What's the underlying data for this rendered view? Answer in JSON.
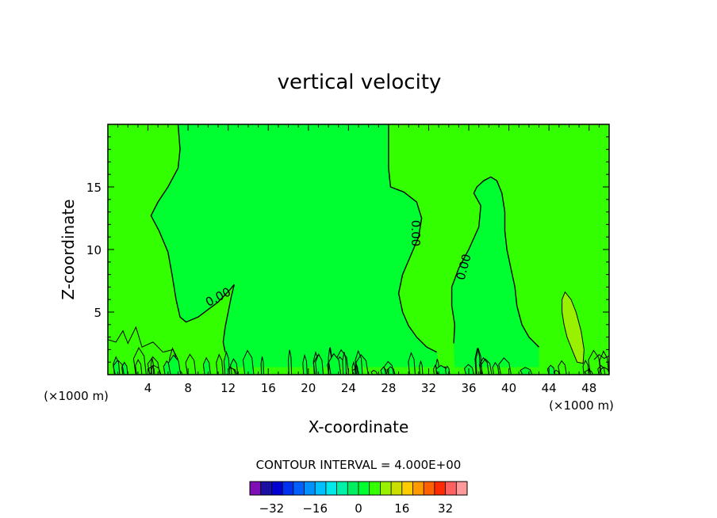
{
  "chart_data": {
    "type": "contour",
    "title": "vertical velocity",
    "xlabel": "X-coordinate",
    "ylabel": "Z-coordinate",
    "x_unit": "(×1000 m)",
    "xlim": [
      0,
      50
    ],
    "ylim": [
      0,
      20
    ],
    "x_ticks": [
      4,
      8,
      12,
      16,
      20,
      24,
      28,
      32,
      36,
      40,
      44,
      48
    ],
    "y_ticks": [
      5,
      10,
      15
    ],
    "contour_interval_text": "CONTOUR INTERVAL = 4.000E+00",
    "contour_labels": [
      "0.00",
      "0.00",
      "0.00"
    ],
    "colorbar": {
      "levels": [
        -36,
        -32,
        -28,
        -24,
        -20,
        -16,
        -12,
        -8,
        -4,
        0,
        4,
        8,
        12,
        16,
        20,
        24,
        28,
        32,
        36
      ],
      "tick_values": [
        -32,
        -16,
        0,
        16,
        32
      ],
      "tick_labels": [
        "−32",
        "−16",
        "0",
        "16",
        "32"
      ],
      "colors": [
        "#7f0fb5",
        "#1a0fa0",
        "#0000d0",
        "#0030f0",
        "#0060ff",
        "#0090ff",
        "#00c0ff",
        "#00e8e8",
        "#00f0a8",
        "#00ee60",
        "#00ff30",
        "#33ff00",
        "#99f000",
        "#ccdd00",
        "#ffcc00",
        "#ff9900",
        "#ff6000",
        "#ff2a00",
        "#ff6060",
        "#ff9a9a"
      ]
    },
    "fill_colors": {
      "positive": "#33ff00",
      "negative": "#00ff30",
      "strong_positive": "#99f000"
    },
    "zero_contours": [
      {
        "name": "left-zero-contour",
        "points": [
          [
            7.0,
            20
          ],
          [
            7.2,
            18
          ],
          [
            7.0,
            16.5
          ],
          [
            6.0,
            15.0
          ],
          [
            5.0,
            13.8
          ],
          [
            4.3,
            12.7
          ],
          [
            5.1,
            11.5
          ],
          [
            6.0,
            9.8
          ],
          [
            6.4,
            8.0
          ],
          [
            6.8,
            6.0
          ],
          [
            7.2,
            4.6
          ],
          [
            7.8,
            4.2
          ],
          [
            9.0,
            4.6
          ],
          [
            10.0,
            5.2
          ],
          [
            11.0,
            5.8
          ],
          [
            12.2,
            6.8
          ],
          [
            12.6,
            7.2
          ],
          [
            12.3,
            6.2
          ],
          [
            12.0,
            5.0
          ],
          [
            11.7,
            3.8
          ],
          [
            11.5,
            2.6
          ],
          [
            11.7,
            1.8
          ]
        ]
      },
      {
        "name": "middle-zero-contour",
        "points": [
          [
            28.0,
            20
          ],
          [
            28.0,
            18
          ],
          [
            28.0,
            16.5
          ],
          [
            28.2,
            15.0
          ],
          [
            29.5,
            14.6
          ],
          [
            30.8,
            13.8
          ],
          [
            31.3,
            12.5
          ],
          [
            31.0,
            11.0
          ],
          [
            30.2,
            9.5
          ],
          [
            29.4,
            8.0
          ],
          [
            29.0,
            6.5
          ],
          [
            29.4,
            5.0
          ],
          [
            30.0,
            3.9
          ],
          [
            30.8,
            3.0
          ],
          [
            31.8,
            2.2
          ],
          [
            32.8,
            1.8
          ]
        ]
      },
      {
        "name": "right-zero-contour",
        "points": [
          [
            34.5,
            2.5
          ],
          [
            34.6,
            4.0
          ],
          [
            34.3,
            5.5
          ],
          [
            34.3,
            7.0
          ],
          [
            35.0,
            8.5
          ],
          [
            36.0,
            10.0
          ],
          [
            37.0,
            11.8
          ],
          [
            37.2,
            13.5
          ],
          [
            36.5,
            14.5
          ],
          [
            36.8,
            15.0
          ],
          [
            37.5,
            15.5
          ],
          [
            38.2,
            15.8
          ],
          [
            38.8,
            15.5
          ],
          [
            39.3,
            14.5
          ],
          [
            39.6,
            13.0
          ],
          [
            39.6,
            11.5
          ],
          [
            39.8,
            10.0
          ],
          [
            40.2,
            8.5
          ],
          [
            40.6,
            7.0
          ],
          [
            40.8,
            5.5
          ],
          [
            41.3,
            4.0
          ],
          [
            42.0,
            3.0
          ],
          [
            43.0,
            2.2
          ]
        ]
      }
    ],
    "updraft_region": {
      "name": "updraft-contour",
      "points": [
        [
          45.6,
          6.6
        ],
        [
          45.3,
          6.0
        ],
        [
          45.3,
          5.0
        ],
        [
          45.5,
          4.0
        ],
        [
          45.8,
          3.0
        ],
        [
          46.3,
          2.0
        ],
        [
          46.8,
          1.0
        ],
        [
          47.4,
          0.9
        ],
        [
          47.5,
          2.0
        ],
        [
          47.2,
          3.5
        ],
        [
          46.7,
          5.0
        ],
        [
          46.2,
          6.0
        ]
      ]
    },
    "zero_contour_labels_at": [
      [
        11.0,
        6.2
      ],
      [
        30.7,
        11.3
      ],
      [
        35.5,
        8.6
      ]
    ]
  }
}
